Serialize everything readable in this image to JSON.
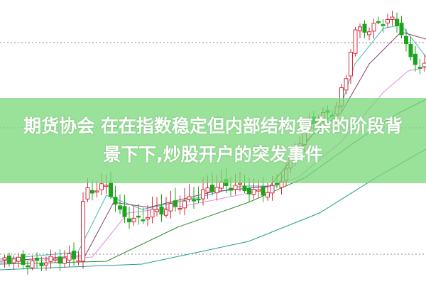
{
  "headline": {
    "line1": "期货协会 在在指数稳定但内部结构复杂的阶段背",
    "line2": "景下下,炒股开户的突发事件"
  },
  "colors": {
    "up_candle": "#d9283a",
    "down_candle": "#1aa61a",
    "banner": "#97e097",
    "ma_short": "#3fb7b7",
    "ma_mid": "#8a3a6a",
    "ma_long": "#e58ce0",
    "ma_longer": "#2e8b2e",
    "ma_longest": "#1f9c8c"
  }
}
